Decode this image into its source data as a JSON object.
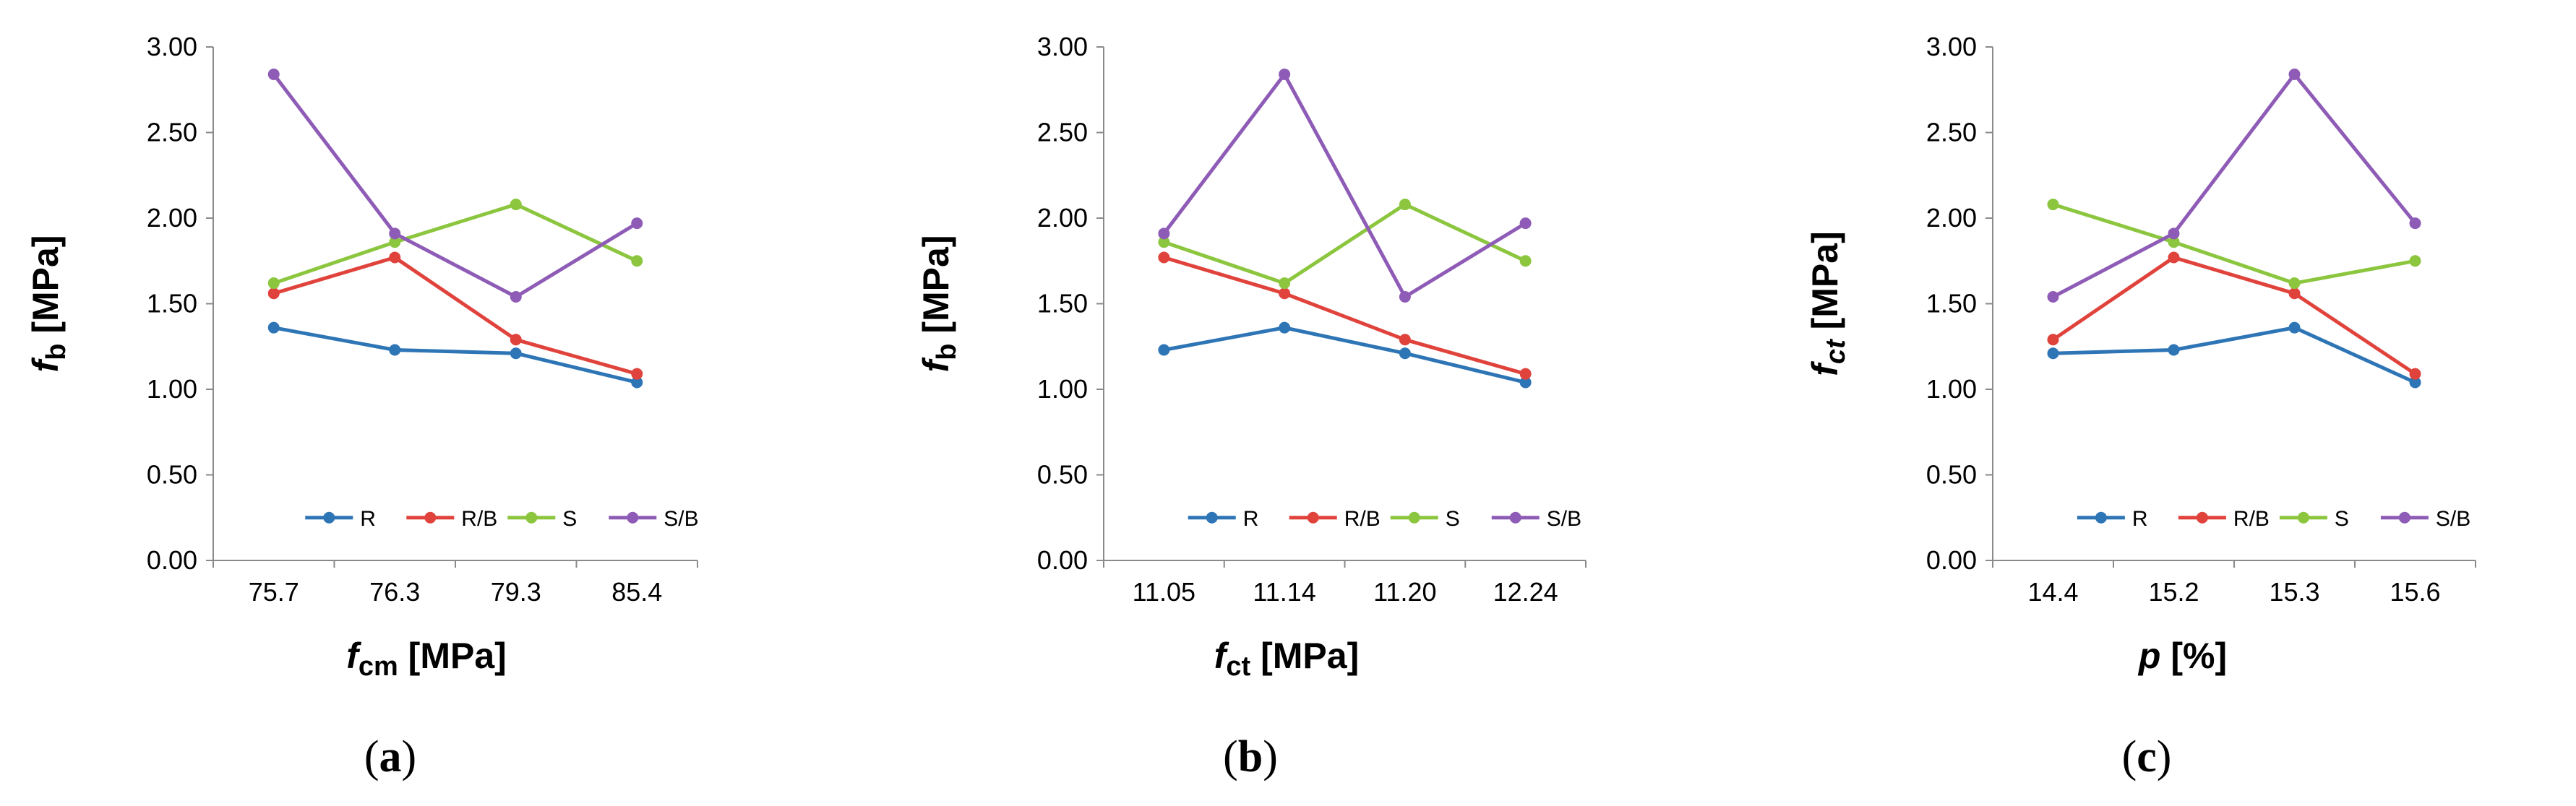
{
  "series_colors": {
    "R": "#2e75b6",
    "R/B": "#e0433c",
    "S": "#8cc63f",
    "S/B": "#8e5cb6"
  },
  "chart_data": [
    {
      "type": "line",
      "caption": {
        "open": "(",
        "letter": "a",
        "close": ")"
      },
      "xlabel": {
        "main": "f",
        "sub": "cm",
        "unit": " [MPa]"
      },
      "ylabel": {
        "main": "f",
        "sub": "b",
        "unit": " [MPa]"
      },
      "ylim": [
        0,
        3
      ],
      "yticks": [
        "0.00",
        "0.50",
        "1.00",
        "1.50",
        "2.00",
        "2.50",
        "3.00"
      ],
      "categories": [
        "75.7",
        "76.3",
        "79.3",
        "85.4"
      ],
      "series": [
        {
          "name": "R",
          "values": [
            1.36,
            1.23,
            1.21,
            1.04
          ]
        },
        {
          "name": "R/B",
          "values": [
            1.56,
            1.77,
            1.29,
            1.09
          ]
        },
        {
          "name": "S",
          "values": [
            1.62,
            1.86,
            2.08,
            1.75
          ]
        },
        {
          "name": "S/B",
          "values": [
            2.84,
            1.91,
            1.54,
            1.97
          ]
        }
      ]
    },
    {
      "type": "line",
      "caption": {
        "open": "(",
        "letter": "b",
        "close": ")"
      },
      "xlabel": {
        "main": "f",
        "sub": "ct",
        "unit": " [MPa]"
      },
      "ylabel": {
        "main": "f",
        "sub": "b",
        "unit": " [MPa]"
      },
      "ylim": [
        0,
        3
      ],
      "yticks": [
        "0.00",
        "0.50",
        "1.00",
        "1.50",
        "2.00",
        "2.50",
        "3.00"
      ],
      "categories": [
        "11.05",
        "11.14",
        "11.20",
        "12.24"
      ],
      "series": [
        {
          "name": "R",
          "values": [
            1.23,
            1.36,
            1.21,
            1.04
          ]
        },
        {
          "name": "R/B",
          "values": [
            1.77,
            1.56,
            1.29,
            1.09
          ]
        },
        {
          "name": "S",
          "values": [
            1.86,
            1.62,
            2.08,
            1.75
          ]
        },
        {
          "name": "S/B",
          "values": [
            1.91,
            2.84,
            1.54,
            1.97
          ]
        }
      ]
    },
    {
      "type": "line",
      "caption": {
        "open": "(",
        "letter": "c",
        "close": ")"
      },
      "xlabel": {
        "main": "p",
        "sub": "",
        "unit": " [%]"
      },
      "ylabel": {
        "main": "f",
        "sub": "ct",
        "unit": " [MPa]"
      },
      "ylim": [
        0,
        3
      ],
      "yticks": [
        "0.00",
        "0.50",
        "1.00",
        "1.50",
        "2.00",
        "2.50",
        "3.00"
      ],
      "categories": [
        "14.4",
        "15.2",
        "15.3",
        "15.6"
      ],
      "series": [
        {
          "name": "R",
          "values": [
            1.21,
            1.23,
            1.36,
            1.04
          ]
        },
        {
          "name": "R/B",
          "values": [
            1.29,
            1.77,
            1.56,
            1.09
          ]
        },
        {
          "name": "S",
          "values": [
            2.08,
            1.86,
            1.62,
            1.75
          ]
        },
        {
          "name": "S/B",
          "values": [
            1.54,
            1.91,
            2.84,
            1.97
          ]
        }
      ]
    }
  ]
}
